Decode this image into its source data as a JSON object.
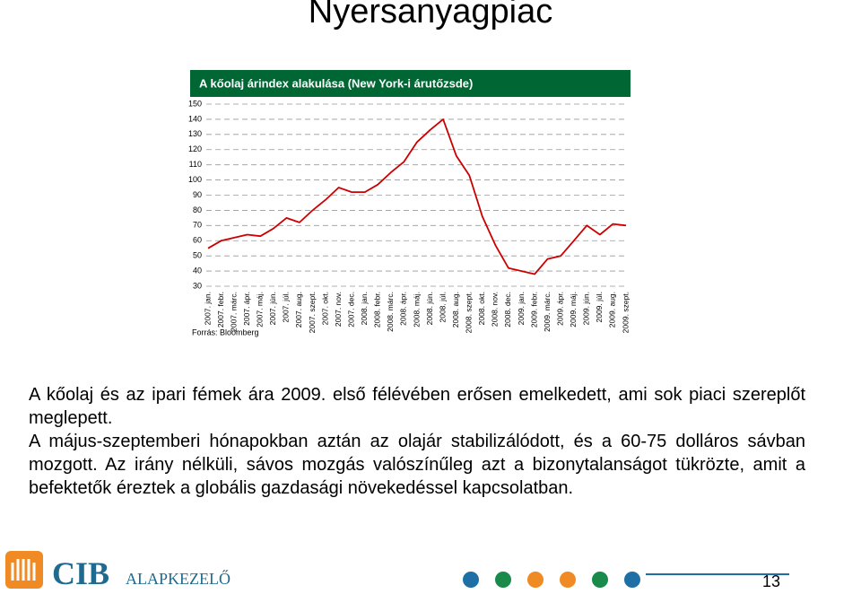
{
  "title": "Nyersanyagpiac",
  "chart_data": {
    "type": "line",
    "title": "A kőolaj árindex alakulása (New York-i árutőzsde)",
    "source": "Forrás: Bloomberg",
    "categories": [
      "2007. jan.",
      "2007. febr.",
      "2007. márc.",
      "2007. ápr.",
      "2007. máj.",
      "2007. jún.",
      "2007. júl.",
      "2007. aug.",
      "2007. szept.",
      "2007. okt.",
      "2007. nov.",
      "2007. dec.",
      "2008. jan.",
      "2008. febr.",
      "2008. márc.",
      "2008. ápr.",
      "2008. máj.",
      "2008. jún.",
      "2008. júl.",
      "2008. aug.",
      "2008. szept.",
      "2008. okt.",
      "2008. nov.",
      "2008. dec.",
      "2009. jan.",
      "2009. febr.",
      "2009. márc.",
      "2009. ápr.",
      "2009. máj.",
      "2009. jún.",
      "2009. júl.",
      "2009. aug.",
      "2009. szept."
    ],
    "values": [
      55,
      60,
      62,
      64,
      63,
      68,
      75,
      72,
      80,
      87,
      95,
      92,
      92,
      97,
      105,
      112,
      125,
      133,
      140,
      116,
      103,
      76,
      57,
      42,
      40,
      38,
      48,
      50,
      60,
      70,
      64,
      71,
      70
    ],
    "color": "#cc0000",
    "ylim": [
      30,
      150
    ],
    "yticks": [
      30,
      40,
      50,
      60,
      70,
      80,
      90,
      100,
      110,
      120,
      130,
      140,
      150
    ],
    "grid": true
  },
  "paragraphs": [
    "A kőolaj és az ipari fémek ára 2009. első félévében erősen emelkedett, ami sok piaci szereplőt meglepett.",
    "A május-szeptemberi hónapokban aztán az olajár stabilizálódott, és a 60-75 dolláros sávban mozgott. Az irány nélküli, sávos mozgás valószínűleg azt a bizonytalanságot tükrözte, amit a befektetők éreztek a globális gazdasági növekedéssel kapcsolatban."
  ],
  "footer": {
    "logo": "CIB",
    "brand": "ALAPKEZELŐ",
    "page": "13"
  }
}
